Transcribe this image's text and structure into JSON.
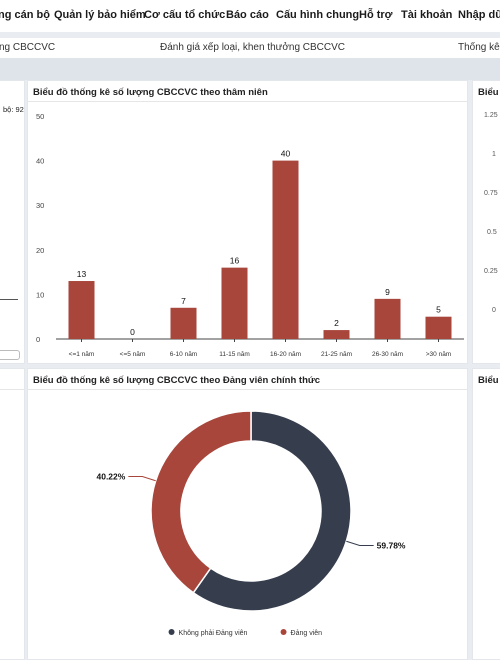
{
  "top_nav": {
    "items": [
      "ng cán bộ",
      "Quản lý bảo hiểm",
      "Cơ cấu tổ chức",
      "Báo cáo",
      "Cấu hình chung",
      "Hỗ trợ",
      "Tài khoản",
      "Nhập dữ l"
    ]
  },
  "sub_nav": {
    "items": [
      "ng CBCCVC",
      "Đánh giá xếp loại, khen thưởng CBCCVC",
      "Thống kê"
    ]
  },
  "left_panel": {
    "text": "bộ: 92"
  },
  "tenure_chart": {
    "title": "Biểu đồ thống kê số lượng CBCCVC theo thâm niên"
  },
  "right_top_panel": {
    "title": "Biểu đ",
    "ticks": [
      "1.25",
      "1",
      "0.75",
      "0.5",
      "0.25",
      "0"
    ]
  },
  "party_chart": {
    "title": "Biểu đồ thống kê số lượng CBCCVC theo Đảng viên chính thức"
  },
  "right_bottom_panel": {
    "title": "Biểu đ"
  },
  "chart_data": [
    {
      "type": "bar",
      "title": "Biểu đồ thống kê số lượng CBCCVC theo thâm niên",
      "categories": [
        "<=1 năm",
        "<=5 năm",
        "6-10 năm",
        "11-15 năm",
        "16-20 năm",
        "21-25 năm",
        "26-30 năm",
        ">30 năm"
      ],
      "values": [
        13,
        0,
        7,
        16,
        40,
        2,
        9,
        5
      ],
      "yticks": [
        0,
        10,
        20,
        30,
        40,
        50
      ],
      "ylim": [
        0,
        50
      ],
      "grid": false,
      "color": "#a8463b"
    },
    {
      "type": "pie",
      "title": "Biểu đồ thống kê số lượng CBCCVC theo Đảng viên chính thức",
      "donut": true,
      "slices": [
        {
          "name": "Không phải Đảng viên",
          "value": 59.78,
          "label": "59.78%",
          "color": "#363e4e"
        },
        {
          "name": "Đảng viên",
          "value": 40.22,
          "label": "40.22%",
          "color": "#a8463b"
        }
      ],
      "legend": "bottom"
    }
  ]
}
